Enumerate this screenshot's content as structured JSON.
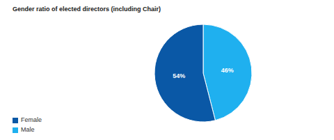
{
  "chart_data": {
    "type": "pie",
    "title": "Gender ratio of elected directors (including Chair)",
    "categories": [
      "Male",
      "Female"
    ],
    "values": [
      46,
      54
    ],
    "value_labels": [
      "46%",
      "54%"
    ],
    "colors": [
      "#1fb0ef",
      "#0a58a6"
    ],
    "data_labels": true,
    "legend": "bottom-left"
  }
}
